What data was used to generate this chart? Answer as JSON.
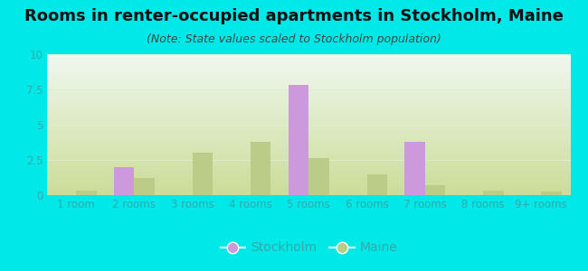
{
  "categories": [
    "1 room",
    "2 rooms",
    "3 rooms",
    "4 rooms",
    "5 rooms",
    "6 rooms",
    "7 rooms",
    "8 rooms",
    "9+ rooms"
  ],
  "stockholm_values": [
    0.0,
    2.0,
    0.0,
    0.0,
    7.8,
    0.0,
    3.8,
    0.0,
    0.0
  ],
  "maine_values": [
    0.3,
    1.2,
    3.0,
    3.8,
    2.6,
    1.5,
    0.7,
    0.3,
    0.25
  ],
  "stockholm_color": "#cc99dd",
  "maine_color": "#bbcc88",
  "background_outer": "#00e8e8",
  "grad_top": "#f0f8f0",
  "grad_bottom": "#ccdd99",
  "title": "Rooms in renter-occupied apartments in Stockholm, Maine",
  "subtitle": "(Note: State values scaled to Stockholm population)",
  "ylim": [
    0,
    10
  ],
  "yticks": [
    0,
    2.5,
    5,
    7.5,
    10
  ],
  "title_fontsize": 13,
  "subtitle_fontsize": 9,
  "tick_fontsize": 8.5,
  "legend_fontsize": 10,
  "bar_width": 0.35,
  "label_color": "#33aaaa",
  "grid_color": "#ddeecc"
}
